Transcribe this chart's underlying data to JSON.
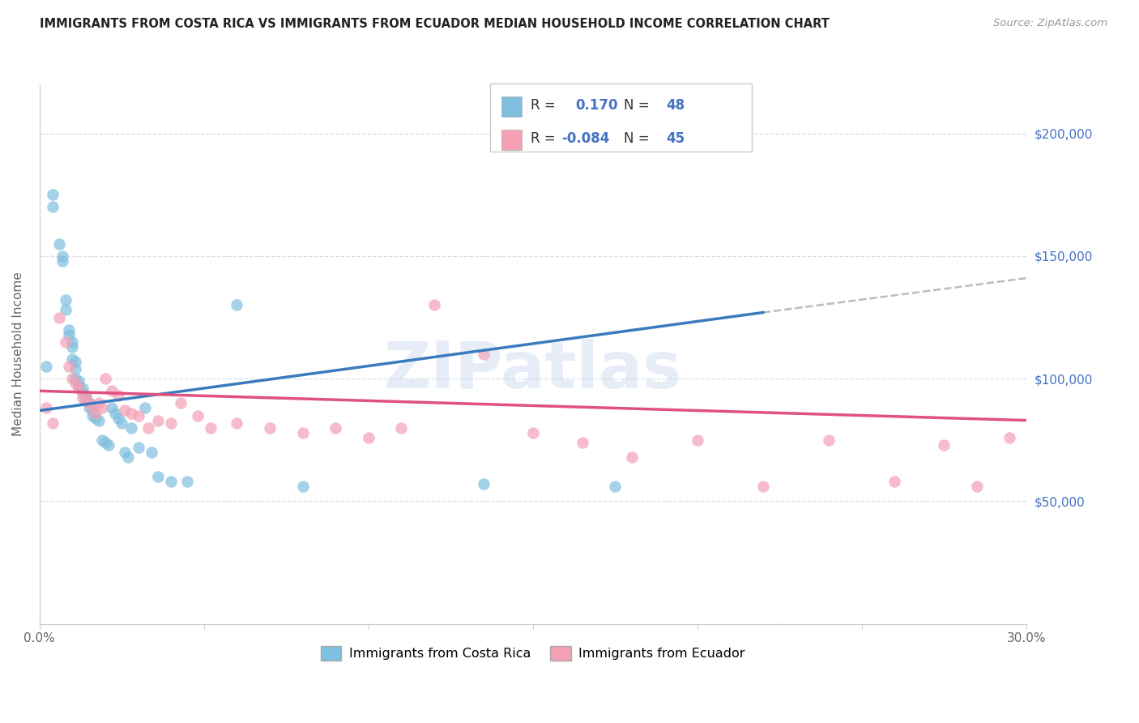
{
  "title": "IMMIGRANTS FROM COSTA RICA VS IMMIGRANTS FROM ECUADOR MEDIAN HOUSEHOLD INCOME CORRELATION CHART",
  "source": "Source: ZipAtlas.com",
  "ylabel": "Median Household Income",
  "xlim": [
    0.0,
    0.3
  ],
  "ylim": [
    0,
    220000
  ],
  "xtick_labels": [
    "0.0%",
    "",
    "",
    "",
    "",
    "",
    "30.0%"
  ],
  "costa_rica_color": "#7fbfdf",
  "ecuador_color": "#f4a0b5",
  "costa_rica_line_color": "#3a7bbf",
  "ecuador_line_color": "#e05080",
  "dash_color": "#bbbbbb",
  "watermark": "ZIPatlas",
  "R_cr": 0.17,
  "N_cr": 48,
  "R_ec": -0.084,
  "N_ec": 45,
  "background_color": "#ffffff",
  "grid_color": "#d5dff0",
  "title_color": "#222222",
  "right_label_color": "#4472c4",
  "cr_line_x0": 0.0,
  "cr_line_y0": 87000,
  "cr_line_x1": 0.22,
  "cr_line_y1": 127000,
  "ec_line_x0": 0.0,
  "ec_line_y0": 95000,
  "ec_line_x1": 0.3,
  "ec_line_y1": 83000,
  "dash_line_x0": 0.22,
  "dash_line_y0": 127000,
  "dash_line_x1": 0.3,
  "dash_line_y1": 141000,
  "costa_rica_x": [
    0.002,
    0.004,
    0.004,
    0.006,
    0.007,
    0.007,
    0.008,
    0.008,
    0.009,
    0.009,
    0.01,
    0.01,
    0.01,
    0.011,
    0.011,
    0.011,
    0.012,
    0.012,
    0.013,
    0.013,
    0.014,
    0.014,
    0.015,
    0.015,
    0.016,
    0.016,
    0.017,
    0.018,
    0.019,
    0.02,
    0.021,
    0.022,
    0.023,
    0.024,
    0.025,
    0.026,
    0.027,
    0.028,
    0.03,
    0.032,
    0.034,
    0.036,
    0.04,
    0.045,
    0.06,
    0.08,
    0.135,
    0.175
  ],
  "costa_rica_y": [
    105000,
    175000,
    170000,
    155000,
    150000,
    148000,
    128000,
    132000,
    120000,
    118000,
    115000,
    113000,
    108000,
    107000,
    104000,
    100000,
    99000,
    97000,
    96000,
    94000,
    93000,
    91000,
    90000,
    88000,
    87000,
    85000,
    84000,
    83000,
    75000,
    74000,
    73000,
    88000,
    86000,
    84000,
    82000,
    70000,
    68000,
    80000,
    72000,
    88000,
    70000,
    60000,
    58000,
    58000,
    130000,
    56000,
    57000,
    56000
  ],
  "ecuador_x": [
    0.002,
    0.004,
    0.006,
    0.008,
    0.009,
    0.01,
    0.011,
    0.012,
    0.013,
    0.014,
    0.015,
    0.016,
    0.017,
    0.018,
    0.019,
    0.02,
    0.022,
    0.024,
    0.026,
    0.028,
    0.03,
    0.033,
    0.036,
    0.04,
    0.043,
    0.048,
    0.052,
    0.06,
    0.07,
    0.08,
    0.09,
    0.1,
    0.11,
    0.12,
    0.135,
    0.15,
    0.165,
    0.18,
    0.2,
    0.22,
    0.24,
    0.26,
    0.275,
    0.285,
    0.295
  ],
  "ecuador_y": [
    88000,
    82000,
    125000,
    115000,
    105000,
    100000,
    98000,
    96000,
    92000,
    92000,
    90000,
    88000,
    86000,
    90000,
    88000,
    100000,
    95000,
    93000,
    87000,
    86000,
    85000,
    80000,
    83000,
    82000,
    90000,
    85000,
    80000,
    82000,
    80000,
    78000,
    80000,
    76000,
    80000,
    130000,
    110000,
    78000,
    74000,
    68000,
    75000,
    56000,
    75000,
    58000,
    73000,
    56000,
    76000
  ]
}
